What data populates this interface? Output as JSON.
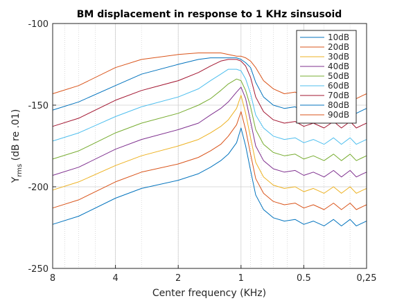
{
  "chart_data": {
    "type": "line",
    "title": "BM displacement in response to 1 KHz sinsusoid",
    "xlabel": "Center frequency (KHz)",
    "ylabel": {
      "main": "Y",
      "sub": "rms",
      "rest": " (dB re .01)"
    },
    "x_scale": "log",
    "x_reversed": true,
    "xlim": [
      8,
      0.25
    ],
    "ylim": [
      -250,
      -100
    ],
    "x_ticks": [
      {
        "value": 8,
        "label": "8"
      },
      {
        "value": 4,
        "label": "4"
      },
      {
        "value": 2,
        "label": "2"
      },
      {
        "value": 1,
        "label": "1"
      },
      {
        "value": 0.5,
        "label": "0.5"
      },
      {
        "value": 0.25,
        "label": "0,25"
      }
    ],
    "y_ticks": [
      {
        "value": -100,
        "label": "-100"
      },
      {
        "value": -150,
        "label": "-150"
      },
      {
        "value": -200,
        "label": "-200"
      },
      {
        "value": -250,
        "label": "-250"
      }
    ],
    "grid": true,
    "legend_position": "top-right",
    "x": [
      8.0,
      6.0,
      4.0,
      3.0,
      2.0,
      1.6,
      1.4,
      1.25,
      1.15,
      1.05,
      1.0,
      0.95,
      0.9,
      0.85,
      0.78,
      0.7,
      0.62,
      0.55,
      0.5,
      0.45,
      0.4,
      0.36,
      0.33,
      0.3,
      0.28,
      0.26,
      0.25
    ],
    "series": [
      {
        "name": "10dB",
        "color": "#0072bd",
        "values": [
          -223,
          -218,
          -207,
          -201,
          -196,
          -192,
          -188,
          -184,
          -180,
          -173,
          -164,
          -175,
          -190,
          -205,
          -214,
          -219,
          -221,
          -220,
          -223,
          -221,
          -224,
          -220,
          -224,
          -220,
          -224,
          -222,
          -221
        ]
      },
      {
        "name": "20dB",
        "color": "#d95319",
        "values": [
          -213,
          -208,
          -197,
          -191,
          -186,
          -182,
          -178,
          -174,
          -169,
          -162,
          -154,
          -165,
          -180,
          -195,
          -204,
          -209,
          -211,
          -210,
          -213,
          -211,
          -214,
          -210,
          -214,
          -210,
          -214,
          -212,
          -211
        ]
      },
      {
        "name": "30dB",
        "color": "#edb120",
        "values": [
          -202,
          -197,
          -187,
          -181,
          -175,
          -171,
          -167,
          -163,
          -159,
          -152,
          -144,
          -155,
          -170,
          -185,
          -194,
          -199,
          -201,
          -200,
          -203,
          -201,
          -204,
          -200,
          -204,
          -200,
          -204,
          -202,
          -201
        ]
      },
      {
        "name": "40dB",
        "color": "#7e2f8e",
        "values": [
          -193,
          -188,
          -177,
          -171,
          -165,
          -161,
          -156,
          -152,
          -148,
          -142,
          -139,
          -146,
          -160,
          -175,
          -184,
          -189,
          -191,
          -190,
          -193,
          -191,
          -194,
          -190,
          -194,
          -190,
          -194,
          -192,
          -191
        ]
      },
      {
        "name": "50dB",
        "color": "#77ac30",
        "values": [
          -183,
          -178,
          -167,
          -161,
          -155,
          -150,
          -146,
          -141,
          -137,
          -134,
          -135,
          -141,
          -151,
          -165,
          -174,
          -179,
          -181,
          -180,
          -183,
          -181,
          -184,
          -180,
          -184,
          -180,
          -184,
          -182,
          -181
        ]
      },
      {
        "name": "60dB",
        "color": "#4dbeee",
        "values": [
          -172,
          -167,
          -157,
          -151,
          -145,
          -140,
          -135,
          -131,
          -128,
          -128,
          -129,
          -134,
          -143,
          -156,
          -164,
          -169,
          -171,
          -170,
          -173,
          -171,
          -174,
          -170,
          -174,
          -170,
          -174,
          -172,
          -171
        ]
      },
      {
        "name": "70dB",
        "color": "#a2142f",
        "values": [
          -163,
          -158,
          -147,
          -141,
          -135,
          -130,
          -126,
          -123,
          -122,
          -122,
          -123,
          -126,
          -133,
          -145,
          -154,
          -159,
          -161,
          -160,
          -163,
          -161,
          -164,
          -160,
          -164,
          -160,
          -164,
          -162,
          -161
        ]
      },
      {
        "name": "80dB",
        "color": "#0072bd",
        "values": [
          -153,
          -148,
          -138,
          -131,
          -125,
          -122,
          -121,
          -121,
          -121,
          -121,
          -122,
          -124,
          -127,
          -136,
          -145,
          -150,
          -152,
          -151,
          -154,
          -152,
          -155,
          -151,
          -155,
          -151,
          -155,
          -153,
          -152
        ]
      },
      {
        "name": "90dB",
        "color": "#d95319",
        "values": [
          -143,
          -138,
          -127,
          -122,
          -119,
          -118,
          -118,
          -118,
          -119,
          -120,
          -120,
          -121,
          -123,
          -127,
          -135,
          -140,
          -143,
          -142,
          -145,
          -143,
          -146,
          -142,
          -146,
          -142,
          -146,
          -144,
          -143
        ]
      }
    ]
  }
}
